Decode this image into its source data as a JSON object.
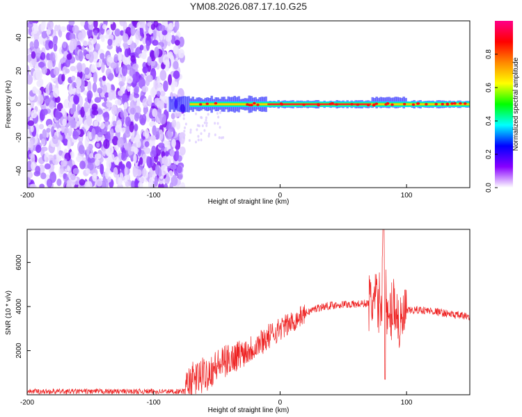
{
  "chart_data": [
    {
      "type": "heatmap",
      "title": "YM08.2026.087.17.10.G25",
      "xlabel": "Height of straight line (km)",
      "ylabel": "Frequency (Hz)",
      "xlim": [
        -200,
        150
      ],
      "ylim": [
        -50,
        50
      ],
      "xticks": [
        -200,
        -100,
        0,
        100
      ],
      "yticks": [
        -40,
        -20,
        0,
        20,
        40
      ],
      "noise_region_x": [
        -200,
        -77
      ],
      "signal_band_hz": 0,
      "signal_start_x": -77,
      "colorbar": {
        "label": "Normalized spectral amplitude",
        "range": [
          0,
          1
        ],
        "ticks": [
          "0.0",
          "0.2",
          "0.4",
          "0.6",
          "0.8"
        ],
        "colors": [
          "#ffffff",
          "#8800ff",
          "#0000ff",
          "#00ffff",
          "#00ff00",
          "#ffff00",
          "#ff8800",
          "#ff0000",
          "#ff0088"
        ]
      }
    },
    {
      "type": "line",
      "xlabel": "Height of straight line (km)",
      "ylabel": "SNR (10 * v/v)",
      "xlim": [
        -200,
        150
      ],
      "ylim": [
        0,
        7500
      ],
      "xticks": [
        -200,
        -100,
        0,
        100
      ],
      "yticks": [
        2000,
        4000,
        6000
      ],
      "series": [
        {
          "name": "SNR",
          "color": "#ee2222",
          "x": [
            -200,
            -150,
            -100,
            -75,
            -70,
            -60,
            -50,
            -40,
            -30,
            -20,
            -10,
            0,
            10,
            20,
            30,
            40,
            50,
            60,
            70,
            75,
            80,
            82,
            85,
            90,
            95,
            100,
            110,
            120,
            130,
            140,
            150
          ],
          "values": [
            150,
            150,
            150,
            150,
            600,
            900,
            1300,
            1600,
            1900,
            2200,
            2600,
            3000,
            3300,
            3700,
            3950,
            4050,
            4100,
            4100,
            4150,
            4200,
            4150,
            6500,
            3000,
            4300,
            3000,
            3800,
            3850,
            3800,
            3700,
            3600,
            3550
          ]
        }
      ]
    }
  ]
}
